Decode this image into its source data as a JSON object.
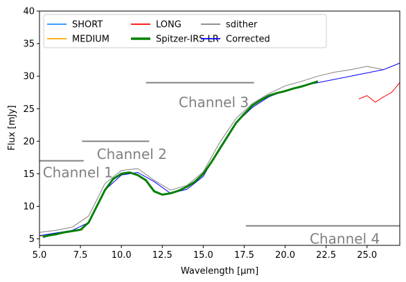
{
  "chart_data": {
    "type": "line",
    "xlabel": "Wavelength [μm]",
    "ylabel": "Flux [mJy]",
    "xlim": [
      5.0,
      27.0
    ],
    "ylim": [
      4.0,
      40.0
    ],
    "x_ticks": [
      5.0,
      7.5,
      10.0,
      12.5,
      15.0,
      17.5,
      20.0,
      22.5,
      25.0
    ],
    "x_tick_labels": [
      "5.0",
      "7.5",
      "10.0",
      "12.5",
      "15.0",
      "17.5",
      "20.0",
      "22.5",
      "25.0"
    ],
    "y_ticks": [
      5,
      10,
      15,
      20,
      25,
      30,
      35,
      40
    ],
    "y_tick_labels": [
      "5",
      "10",
      "15",
      "20",
      "25",
      "30",
      "35",
      "40"
    ],
    "grid": false,
    "legend_placement": "top",
    "series": [
      {
        "name": "SHORT",
        "color": "#1e90ff",
        "width": 1,
        "x": [
          5.0,
          5.5,
          6.0,
          6.5,
          7.0,
          7.5,
          7.7
        ],
        "y": [
          5.5,
          5.7,
          5.9,
          6.1,
          6.3,
          6.5,
          6.6
        ]
      },
      {
        "name": "MEDIUM",
        "color": "#ffa500",
        "width": 1,
        "x": [
          5.0,
          5.5,
          6.0,
          6.5,
          7.0,
          7.5,
          7.7
        ],
        "y": [
          5.4,
          5.5,
          5.7,
          5.9,
          6.1,
          6.3,
          6.4
        ]
      },
      {
        "name": "LONG",
        "color": "#ff0000",
        "width": 1,
        "x": [
          24.5,
          25.0,
          25.5,
          26.0,
          26.5,
          27.0
        ],
        "y": [
          26.5,
          27.0,
          26.0,
          26.8,
          27.5,
          29.0
        ]
      },
      {
        "name": "Spitzer-IRS LR",
        "color": "#008000",
        "width": 3,
        "x": [
          5.2,
          5.5,
          6.0,
          6.5,
          7.0,
          7.5,
          8.0,
          8.5,
          9.0,
          9.5,
          10.0,
          10.5,
          11.0,
          11.5,
          12.0,
          12.5,
          13.0,
          13.5,
          14.0,
          14.5,
          15.0,
          15.5,
          16.0,
          16.5,
          17.0,
          17.5,
          18.0,
          18.5,
          19.0,
          19.5,
          20.0,
          20.5,
          21.0,
          21.5,
          22.0
        ],
        "y": [
          5.3,
          5.5,
          5.7,
          6.0,
          6.2,
          6.4,
          7.5,
          10.0,
          12.5,
          14.2,
          15.0,
          15.2,
          14.8,
          14.0,
          12.3,
          11.8,
          12.0,
          12.4,
          13.0,
          13.8,
          15.0,
          16.8,
          18.8,
          20.8,
          22.8,
          24.2,
          25.5,
          26.3,
          27.0,
          27.4,
          27.7,
          28.1,
          28.4,
          28.8,
          29.2
        ]
      },
      {
        "name": "sdither",
        "color": "#808080",
        "width": 1,
        "x": [
          5.0,
          6.0,
          7.0,
          8.0,
          9.0,
          10.0,
          11.0,
          12.0,
          13.0,
          14.0,
          15.0,
          16.0,
          17.0,
          18.0,
          19.0,
          20.0,
          21.0,
          22.0,
          23.0,
          24.0,
          25.0,
          26.0,
          27.0
        ],
        "y": [
          6.0,
          6.3,
          6.8,
          8.5,
          13.5,
          15.5,
          15.8,
          14.0,
          12.5,
          13.2,
          15.3,
          19.8,
          23.5,
          25.8,
          27.3,
          28.5,
          29.2,
          30.0,
          30.6,
          31.0,
          31.5,
          31.0,
          32.0
        ]
      },
      {
        "name": "Corrected",
        "color": "#0000ff",
        "width": 1,
        "x": [
          5.0,
          6.0,
          7.0,
          8.0,
          9.0,
          10.0,
          11.0,
          12.0,
          13.0,
          14.0,
          15.0,
          16.0,
          17.0,
          18.0,
          19.0,
          20.0,
          21.0,
          22.0,
          23.0,
          24.0,
          25.0,
          26.0,
          27.0
        ],
        "y": [
          5.5,
          5.9,
          6.3,
          7.5,
          12.5,
          14.8,
          15.2,
          13.8,
          12.0,
          12.6,
          14.6,
          19.0,
          22.8,
          25.2,
          26.8,
          27.8,
          28.5,
          29.0,
          29.5,
          30.0,
          30.5,
          31.0,
          32.0
        ]
      }
    ],
    "annotations": [
      {
        "text": "Channel 1",
        "x": 5.2,
        "y": 15.2,
        "line_x": [
          5.0,
          7.7
        ],
        "line_y": 17.0
      },
      {
        "text": "Channel 2",
        "x": 8.5,
        "y": 18.0,
        "line_x": [
          7.6,
          11.7
        ],
        "line_y": 20.0
      },
      {
        "text": "Channel 3",
        "x": 13.5,
        "y": 26.0,
        "line_x": [
          11.5,
          18.1
        ],
        "line_y": 29.0
      },
      {
        "text": "Channel 4",
        "x": 21.5,
        "y": 5.0,
        "line_x": [
          17.6,
          27.0
        ],
        "line_y": 7.0
      }
    ]
  }
}
